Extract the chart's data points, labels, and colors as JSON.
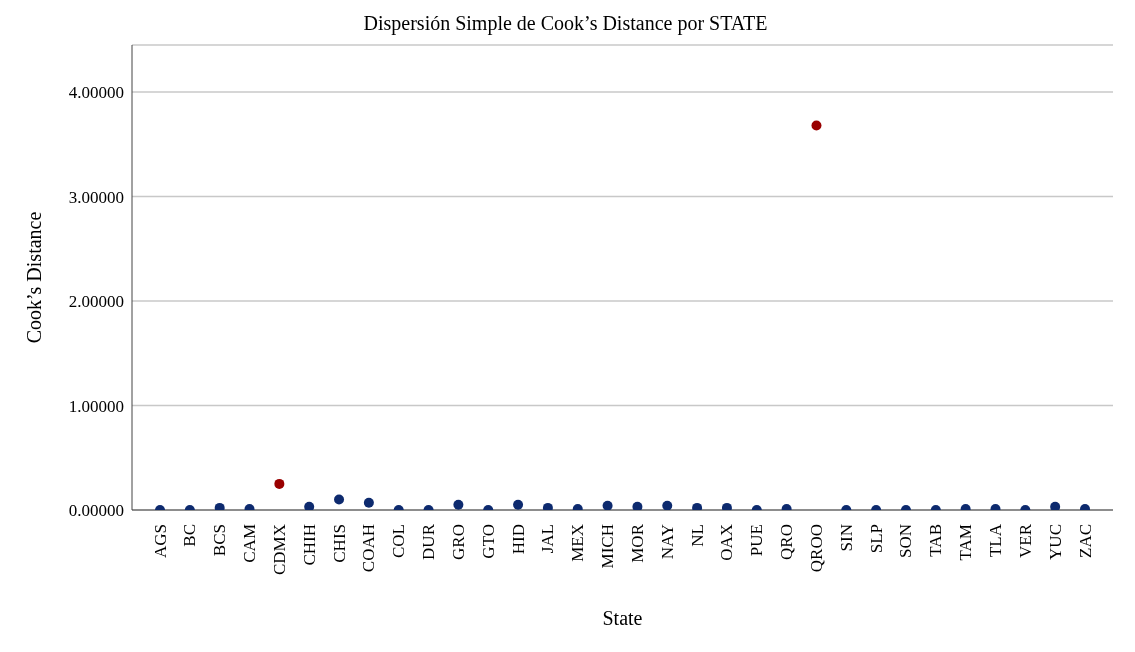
{
  "chart_data": {
    "type": "scatter",
    "title": "Dispersión Simple de Cook’s Distance por STATE",
    "xlabel": "State",
    "ylabel": "Cook’s Distance",
    "categories": [
      "AGS",
      "BC",
      "BCS",
      "CAM",
      "CDMX",
      "CHIH",
      "CHIS",
      "COAH",
      "COL",
      "DUR",
      "GRO",
      "GTO",
      "HID",
      "JAL",
      "MEX",
      "MICH",
      "MOR",
      "NAY",
      "NL",
      "OAX",
      "PUE",
      "QRO",
      "QROO",
      "SIN",
      "SLP",
      "SON",
      "TAB",
      "TAM",
      "TLA",
      "VER",
      "YUC",
      "ZAC"
    ],
    "values": [
      0,
      0,
      0.02,
      0.01,
      0.25,
      0.03,
      0.1,
      0.07,
      0,
      0,
      0.05,
      0,
      0.05,
      0.02,
      0.01,
      0.04,
      0.03,
      0.04,
      0.02,
      0.02,
      0,
      0.01,
      3.68,
      0,
      0,
      0,
      0,
      0.01,
      0.01,
      0,
      0.03,
      0.01
    ],
    "colors": [
      "#0d2a6e",
      "#0d2a6e",
      "#0d2a6e",
      "#0d2a6e",
      "#990000",
      "#0d2a6e",
      "#0d2a6e",
      "#0d2a6e",
      "#0d2a6e",
      "#0d2a6e",
      "#0d2a6e",
      "#0d2a6e",
      "#0d2a6e",
      "#0d2a6e",
      "#0d2a6e",
      "#0d2a6e",
      "#0d2a6e",
      "#0d2a6e",
      "#0d2a6e",
      "#0d2a6e",
      "#0d2a6e",
      "#0d2a6e",
      "#990000",
      "#0d2a6e",
      "#0d2a6e",
      "#0d2a6e",
      "#0d2a6e",
      "#0d2a6e",
      "#0d2a6e",
      "#0d2a6e",
      "#0d2a6e",
      "#0d2a6e"
    ],
    "ylim": [
      0,
      4.45
    ],
    "yticks": [
      {
        "value": 0,
        "label": "0.00000"
      },
      {
        "value": 1,
        "label": "1.00000"
      },
      {
        "value": 2,
        "label": "2.00000"
      },
      {
        "value": 3,
        "label": "3.00000"
      },
      {
        "value": 4,
        "label": "4.00000"
      }
    ],
    "grid": "y",
    "marker": "circle",
    "legend": false
  }
}
